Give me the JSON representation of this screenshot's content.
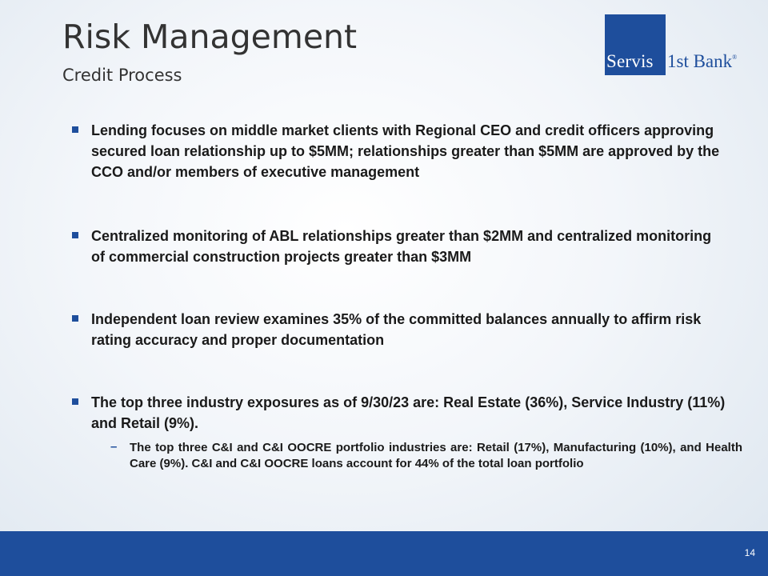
{
  "header": {
    "title": "Risk Management",
    "subtitle": "Credit Process"
  },
  "logo": {
    "part1": "Servis",
    "part2": "1st Bank",
    "mark": "®"
  },
  "bullets": [
    "Lending focuses on middle market clients with Regional CEO and credit officers approving secured loan relationship up to $5MM; relationships greater than $5MM are approved by the CCO and/or members of executive management",
    "Centralized monitoring of ABL relationships greater than $2MM and centralized monitoring of commercial construction projects greater than $3MM",
    "Independent loan review examines 35% of the committed balances annually to affirm risk rating accuracy and proper documentation",
    "The top three industry exposures as of 9/30/23 are: Real Estate (36%), Service Industry (11%) and Retail (9%)."
  ],
  "sub_bullet": "The top three C&I and C&I OOCRE portfolio industries are: Retail (17%), Manufacturing (10%), and Health Care (9%). C&I and C&I OOCRE loans account for 44% of the total loan portfolio",
  "footer": {
    "page_number": "14"
  },
  "colors": {
    "brand_blue": "#1e4e9c"
  }
}
